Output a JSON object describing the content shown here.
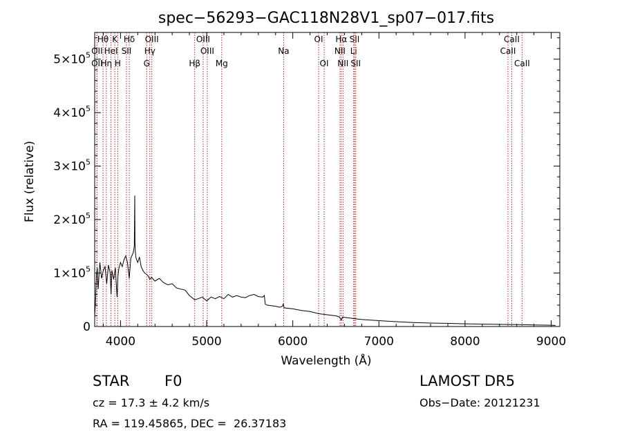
{
  "chart_data": {
    "type": "line",
    "title": "spec−56293−GAC118N28V1_sp07−017.fits",
    "xlabel": "Wavelength (Å)",
    "ylabel": "Flux (relative)",
    "xlim": [
      3700,
      9100
    ],
    "ylim": [
      0,
      550000
    ],
    "x_ticks": [
      4000,
      5000,
      6000,
      7000,
      8000,
      9000
    ],
    "x_tick_labels": [
      "4000",
      "5000",
      "6000",
      "7000",
      "8000",
      "9000"
    ],
    "y_ticks": [
      0,
      100000,
      200000,
      300000,
      400000,
      500000
    ],
    "y_tick_labels": [
      {
        "mant": "0",
        "exp": ""
      },
      {
        "mant": "1×10",
        "exp": "5"
      },
      {
        "mant": "2×10",
        "exp": "5"
      },
      {
        "mant": "3×10",
        "exp": "5"
      },
      {
        "mant": "4×10",
        "exp": "5"
      },
      {
        "mant": "5×10",
        "exp": "5"
      }
    ],
    "spectrum": {
      "x": [
        3700,
        3710,
        3720,
        3730,
        3740,
        3760,
        3780,
        3800,
        3820,
        3840,
        3860,
        3880,
        3890,
        3900,
        3920,
        3940,
        3960,
        3970,
        3980,
        4000,
        4020,
        4040,
        4060,
        4080,
        4101,
        4120,
        4140,
        4150,
        4160,
        4165,
        4168,
        4172,
        4180,
        4200,
        4220,
        4240,
        4260,
        4280,
        4300,
        4320,
        4340,
        4360,
        4400,
        4450,
        4500,
        4550,
        4600,
        4650,
        4700,
        4750,
        4800,
        4861,
        4900,
        4950,
        5000,
        5050,
        5100,
        5150,
        5200,
        5250,
        5300,
        5350,
        5400,
        5450,
        5500,
        5550,
        5600,
        5650,
        5670,
        5680,
        5700,
        5800,
        5850,
        5880,
        5890,
        5900,
        5950,
        6000,
        6100,
        6200,
        6300,
        6400,
        6500,
        6540,
        6563,
        6580,
        6600,
        6700,
        6800,
        7000,
        7200,
        7400,
        7600,
        7800,
        8000,
        8200,
        8400,
        8600,
        8800,
        9000,
        9050
      ],
      "y": [
        20000,
        45000,
        95000,
        110000,
        70000,
        120000,
        90000,
        105000,
        112000,
        80000,
        115000,
        100000,
        60000,
        105000,
        88000,
        110000,
        55000,
        95000,
        108000,
        120000,
        112000,
        125000,
        132000,
        120000,
        90000,
        128000,
        135000,
        140000,
        150000,
        245000,
        160000,
        140000,
        128000,
        120000,
        130000,
        112000,
        105000,
        100000,
        98000,
        95000,
        88000,
        92000,
        85000,
        90000,
        82000,
        78000,
        80000,
        72000,
        70000,
        68000,
        58000,
        50000,
        52000,
        55000,
        48000,
        55000,
        52000,
        56000,
        52000,
        60000,
        55000,
        58000,
        55000,
        54000,
        58000,
        60000,
        56000,
        55000,
        58000,
        42000,
        40000,
        38000,
        36000,
        38000,
        42000,
        35000,
        34000,
        33000,
        30000,
        28000,
        24000,
        22000,
        20000,
        18000,
        12000,
        18000,
        17000,
        15000,
        13000,
        11000,
        9000,
        7500,
        6500,
        6000,
        5000,
        4500,
        4000,
        3500,
        3000,
        2500,
        2000
      ]
    },
    "lines": [
      {
        "label": "Hθ",
        "wave": 3797,
        "row": 0
      },
      {
        "label": "OII",
        "wave": 3727,
        "row": 1
      },
      {
        "label": "OII",
        "wave": 3727,
        "row": 2
      },
      {
        "label": "K",
        "wave": 3934,
        "row": 0
      },
      {
        "label": "HeI",
        "wave": 3889,
        "row": 1
      },
      {
        "label": "Hη",
        "wave": 3835,
        "row": 2
      },
      {
        "label": "SII",
        "wave": 4069,
        "row": 1
      },
      {
        "label": "H",
        "wave": 3968,
        "row": 2
      },
      {
        "label": "Hδ",
        "wave": 4102,
        "row": 0
      },
      {
        "label": "OIII",
        "wave": 4363,
        "row": 0
      },
      {
        "label": "Hγ",
        "wave": 4340,
        "row": 1
      },
      {
        "label": "G",
        "wave": 4304,
        "row": 2
      },
      {
        "label": "OIII",
        "wave": 4959,
        "row": 0
      },
      {
        "label": "OIII",
        "wave": 5007,
        "row": 1
      },
      {
        "label": "Hβ",
        "wave": 4861,
        "row": 2
      },
      {
        "label": "Mg",
        "wave": 5175,
        "row": 2
      },
      {
        "label": "Na",
        "wave": 5894,
        "row": 1
      },
      {
        "label": "OI",
        "wave": 6300,
        "row": 0
      },
      {
        "label": "OI",
        "wave": 6364,
        "row": 2
      },
      {
        "label": "Hα",
        "wave": 6563,
        "row": 0
      },
      {
        "label": "NII",
        "wave": 6548,
        "row": 1
      },
      {
        "label": "NII",
        "wave": 6583,
        "row": 2
      },
      {
        "label": "SII",
        "wave": 6717,
        "row": 0
      },
      {
        "label": "Li",
        "wave": 6707,
        "row": 1
      },
      {
        "label": "SII",
        "wave": 6731,
        "row": 2
      },
      {
        "label": "CaII",
        "wave": 8542,
        "row": 0
      },
      {
        "label": "CaII",
        "wave": 8498,
        "row": 1
      },
      {
        "label": "CaII",
        "wave": 8662,
        "row": 2
      }
    ],
    "colors": {
      "spectrum": "#000000",
      "lines": "#b22222",
      "axes": "#000000"
    }
  },
  "info": {
    "object_class": "STAR",
    "subclass": "F0",
    "survey": "LAMOST DR5",
    "cz": "cz = 17.3 ± 4.2 km/s",
    "obs_date": "Obs−Date: 20121231",
    "coords": "RA = 119.45865, DEC =  26.37183"
  }
}
